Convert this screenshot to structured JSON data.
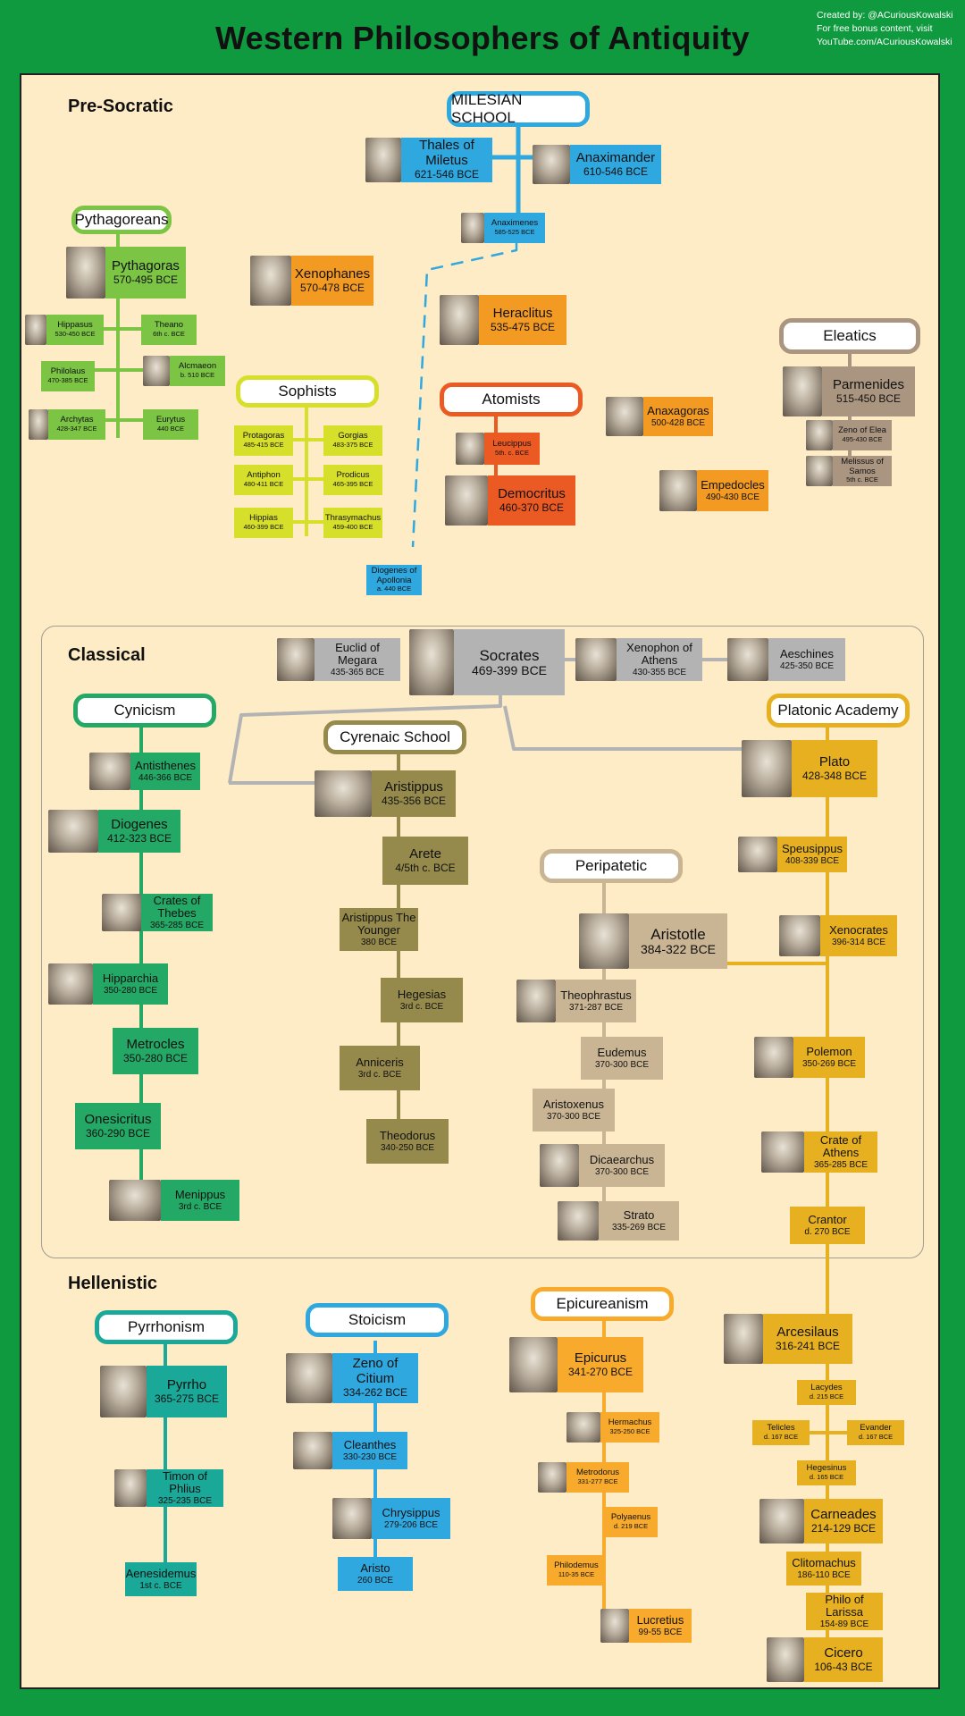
{
  "title": "Western Philosophers of Antiquity",
  "credits": [
    "Created by: @ACuriousKowalski",
    "For free bonus content, visit",
    "YouTube.com/ACuriousKowalski"
  ],
  "eras": {
    "presocratic": "Pre-Socratic",
    "classical": "Classical",
    "hellenistic": "Hellenistic"
  },
  "colors": {
    "background": "#0f9a3f",
    "panel": "#fdecc6",
    "milesian": "#2fa8e0",
    "pythagorean": "#7bc444",
    "sophist": "#d6df2a",
    "xenophanes": "#f39a22",
    "atomist": "#ec5a24",
    "eleatic": "#aa9580",
    "socratic": "#b3b3b3",
    "cynic": "#23a866",
    "cyrenaic": "#958a4c",
    "peripatetic": "#c9b594",
    "academy": "#e6b020",
    "pyrrhonism": "#1aa898",
    "stoic": "#2fa8e0",
    "epicurean": "#f8aa2d"
  },
  "schools": {
    "milesian": "MILESIAN SCHOOL",
    "pythagoreans": "Pythagoreans",
    "sophists": "Sophists",
    "atomists": "Atomists",
    "eleatics": "Eleatics",
    "cynicism": "Cynicism",
    "cyrenaic": "Cyrenaic School",
    "academy": "Platonic Academy",
    "peripatetic": "Peripatetic",
    "pyrrhonism": "Pyrrhonism",
    "stoicism": "Stoicism",
    "epicureanism": "Epicureanism"
  },
  "philosophers": {
    "thales": {
      "name": "Thales of Miletus",
      "dates": "621-546 BCE"
    },
    "anaximander": {
      "name": "Anaximander",
      "dates": "610-546 BCE"
    },
    "anaximenes": {
      "name": "Anaximenes",
      "dates": "585-525 BCE"
    },
    "diogenes_apollonia": {
      "name": "Diogenes of Apollonia",
      "dates": "a. 440 BCE"
    },
    "pythagoras": {
      "name": "Pythagoras",
      "dates": "570-495 BCE"
    },
    "hippasus": {
      "name": "Hippasus",
      "dates": "530-450 BCE"
    },
    "theano": {
      "name": "Theano",
      "dates": "6th c. BCE"
    },
    "philolaus": {
      "name": "Philolaus",
      "dates": "470-385 BCE"
    },
    "alcmaeon": {
      "name": "Alcmaeon",
      "dates": "b. 510 BCE"
    },
    "archytas": {
      "name": "Archytas",
      "dates": "428-347 BCE"
    },
    "eurytus": {
      "name": "Eurytus",
      "dates": "440 BCE"
    },
    "xenophanes": {
      "name": "Xenophanes",
      "dates": "570-478 BCE"
    },
    "protagoras": {
      "name": "Protagoras",
      "dates": "485-415 BCE"
    },
    "gorgias": {
      "name": "Gorgias",
      "dates": "483-375 BCE"
    },
    "antiphon": {
      "name": "Antiphon",
      "dates": "480-411 BCE"
    },
    "prodicus": {
      "name": "Prodicus",
      "dates": "465-395 BCE"
    },
    "hippias": {
      "name": "Hippias",
      "dates": "460-399 BCE"
    },
    "thrasymachus": {
      "name": "Thrasymachus",
      "dates": "459-400 BCE"
    },
    "heraclitus": {
      "name": "Heraclitus",
      "dates": "535-475 BCE"
    },
    "leucippus": {
      "name": "Leucippus",
      "dates": "5th. c. BCE"
    },
    "democritus": {
      "name": "Democritus",
      "dates": "460-370 BCE"
    },
    "anaxagoras": {
      "name": "Anaxagoras",
      "dates": "500-428 BCE"
    },
    "empedocles": {
      "name": "Empedocles",
      "dates": "490-430 BCE"
    },
    "parmenides": {
      "name": "Parmenides",
      "dates": "515-450 BCE"
    },
    "zeno_elea": {
      "name": "Zeno of Elea",
      "dates": "495-430 BCE"
    },
    "melissus": {
      "name": "Melissus of Samos",
      "dates": "5th c. BCE"
    },
    "socrates": {
      "name": "Socrates",
      "dates": "469-399 BCE"
    },
    "euclid": {
      "name": "Euclid of Megara",
      "dates": "435-365 BCE"
    },
    "xenophon": {
      "name": "Xenophon of Athens",
      "dates": "430-355 BCE"
    },
    "aeschines": {
      "name": "Aeschines",
      "dates": "425-350 BCE"
    },
    "antisthenes": {
      "name": "Antisthenes",
      "dates": "446-366 BCE"
    },
    "diogenes": {
      "name": "Diogenes",
      "dates": "412-323 BCE"
    },
    "crates_thebes": {
      "name": "Crates of Thebes",
      "dates": "365-285 BCE"
    },
    "hipparchia": {
      "name": "Hipparchia",
      "dates": "350-280 BCE"
    },
    "metrocles": {
      "name": "Metrocles",
      "dates": "350-280 BCE"
    },
    "onesicritus": {
      "name": "Onesicritus",
      "dates": "360-290 BCE"
    },
    "menippus": {
      "name": "Menippus",
      "dates": "3rd c. BCE"
    },
    "aristippus": {
      "name": "Aristippus",
      "dates": "435-356 BCE"
    },
    "arete": {
      "name": "Arete",
      "dates": "4/5th c. BCE"
    },
    "aristippus_younger": {
      "name": "Aristippus The Younger",
      "dates": "380 BCE"
    },
    "hegesias": {
      "name": "Hegesias",
      "dates": "3rd c. BCE"
    },
    "anniceris": {
      "name": "Anniceris",
      "dates": "3rd c. BCE"
    },
    "theodorus": {
      "name": "Theodorus",
      "dates": "340-250 BCE"
    },
    "aristotle": {
      "name": "Aristotle",
      "dates": "384-322 BCE"
    },
    "theophrastus": {
      "name": "Theophrastus",
      "dates": "371-287 BCE"
    },
    "eudemus": {
      "name": "Eudemus",
      "dates": "370-300 BCE"
    },
    "aristoxenus": {
      "name": "Aristoxenus",
      "dates": "370-300 BCE"
    },
    "dicaearchus": {
      "name": "Dicaearchus",
      "dates": "370-300 BCE"
    },
    "strato": {
      "name": "Strato",
      "dates": "335-269 BCE"
    },
    "plato": {
      "name": "Plato",
      "dates": "428-348 BCE"
    },
    "speusippus": {
      "name": "Speusippus",
      "dates": "408-339 BCE"
    },
    "xenocrates": {
      "name": "Xenocrates",
      "dates": "396-314 BCE"
    },
    "polemon": {
      "name": "Polemon",
      "dates": "350-269 BCE"
    },
    "crate_athens": {
      "name": "Crate of Athens",
      "dates": "365-285 BCE"
    },
    "crantor": {
      "name": "Crantor",
      "dates": "d. 270 BCE"
    },
    "arcesilaus": {
      "name": "Arcesilaus",
      "dates": "316-241 BCE"
    },
    "lacydes": {
      "name": "Lacydes",
      "dates": "d. 215 BCE"
    },
    "telicles": {
      "name": "Telicles",
      "dates": "d. 167 BCE"
    },
    "evander": {
      "name": "Evander",
      "dates": "d. 167 BCE"
    },
    "hegesinus": {
      "name": "Hegesinus",
      "dates": "d. 165 BCE"
    },
    "carneades": {
      "name": "Carneades",
      "dates": "214-129 BCE"
    },
    "clitomachus": {
      "name": "Clitomachus",
      "dates": "186-110 BCE"
    },
    "philo": {
      "name": "Philo of Larissa",
      "dates": "154-89 BCE"
    },
    "cicero": {
      "name": "Cicero",
      "dates": "106-43 BCE"
    },
    "pyrrho": {
      "name": "Pyrrho",
      "dates": "365-275 BCE"
    },
    "timon": {
      "name": "Timon of Phlius",
      "dates": "325-235 BCE"
    },
    "aenesidemus": {
      "name": "Aenesidemus",
      "dates": "1st c. BCE"
    },
    "zeno_citium": {
      "name": "Zeno of Citium",
      "dates": "334-262 BCE"
    },
    "cleanthes": {
      "name": "Cleanthes",
      "dates": "330-230 BCE"
    },
    "chrysippus": {
      "name": "Chrysippus",
      "dates": "279-206 BCE"
    },
    "aristo": {
      "name": "Aristo",
      "dates": "260 BCE"
    },
    "epicurus": {
      "name": "Epicurus",
      "dates": "341-270 BCE"
    },
    "hermachus": {
      "name": "Hermachus",
      "dates": "325-250 BCE"
    },
    "metrodorus": {
      "name": "Metrodorus",
      "dates": "331-277 BCE"
    },
    "polyaenus": {
      "name": "Polyaenus",
      "dates": "d. 219 BCE"
    },
    "philodemus": {
      "name": "Philodemus",
      "dates": "110-35 BCE"
    },
    "lucretius": {
      "name": "Lucretius",
      "dates": "99-55 BCE"
    }
  }
}
